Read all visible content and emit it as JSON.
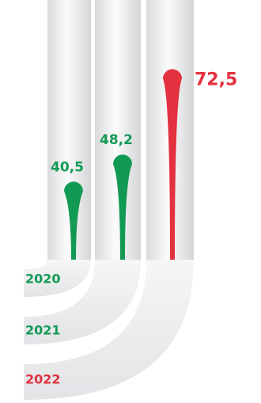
{
  "chart_data": {
    "type": "lollipop",
    "categories": [
      "2020",
      "2021",
      "2022"
    ],
    "values": [
      40.5,
      48.2,
      72.5
    ],
    "value_labels": [
      "40,5",
      "48,2",
      "72,5"
    ],
    "colors": [
      "#129a55",
      "#129a55",
      "#e3313f"
    ]
  }
}
